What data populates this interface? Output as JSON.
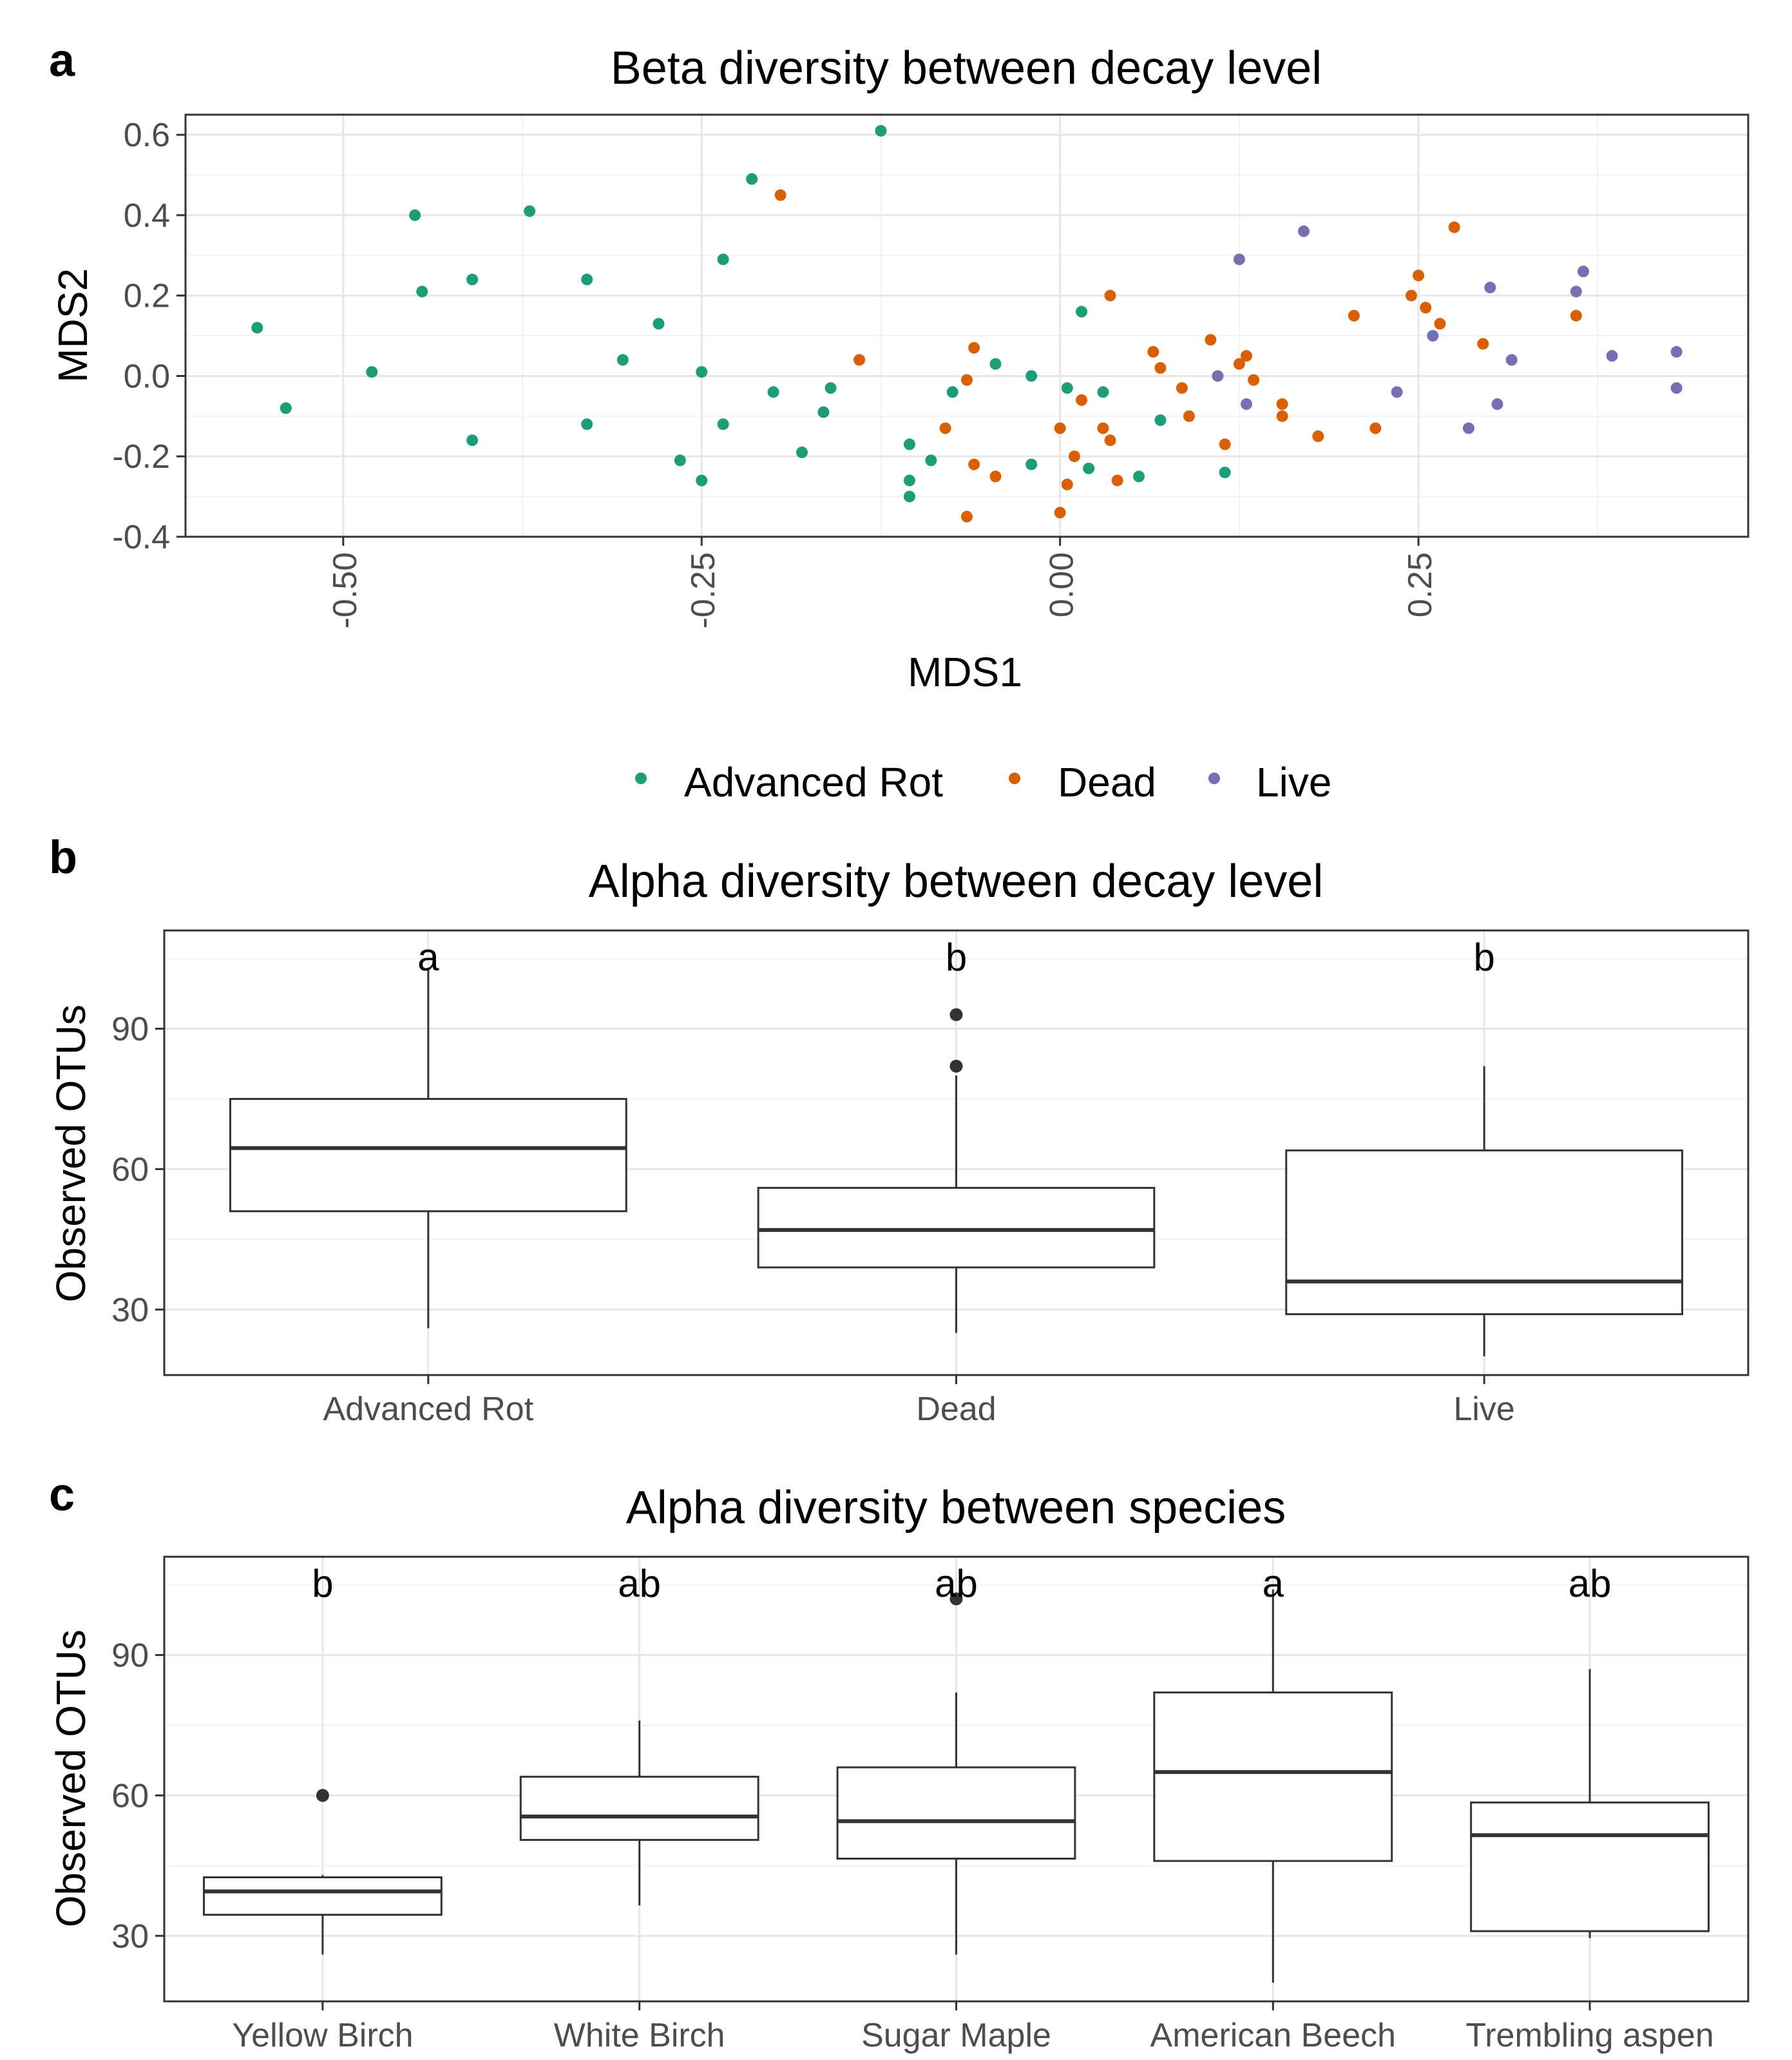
{
  "colors": {
    "advanced_rot": "#1b9e77",
    "dead": "#d95f02",
    "live": "#7570b3",
    "box_stroke": "#333333",
    "outlier": "#333333"
  },
  "chart_data": [
    {
      "panel": "a",
      "type": "scatter",
      "title": "Beta diversity between decay level",
      "xlabel": "MDS1",
      "ylabel": "MDS2",
      "xlim": [
        -0.61,
        0.48
      ],
      "ylim": [
        -0.4,
        0.65
      ],
      "xticks": [
        -0.5,
        -0.25,
        0.0,
        0.25
      ],
      "xtick_labels": [
        "-0.50",
        "-0.25",
        "0.00",
        "0.25"
      ],
      "yticks": [
        -0.4,
        -0.2,
        0.0,
        0.2,
        0.4,
        0.6
      ],
      "ytick_labels": [
        "-0.4",
        "-0.2",
        "0.0",
        "0.2",
        "0.4",
        "0.6"
      ],
      "legend_position": "bottom",
      "series": [
        {
          "name": "Advanced Rot",
          "key": "advanced_rot",
          "points": [
            [
              -0.56,
              0.12
            ],
            [
              -0.54,
              -0.08
            ],
            [
              -0.48,
              0.01
            ],
            [
              -0.45,
              0.4
            ],
            [
              -0.445,
              0.21
            ],
            [
              -0.41,
              0.24
            ],
            [
              -0.41,
              -0.16
            ],
            [
              -0.37,
              0.41
            ],
            [
              -0.33,
              0.24
            ],
            [
              -0.33,
              -0.12
            ],
            [
              -0.305,
              0.04
            ],
            [
              -0.28,
              0.13
            ],
            [
              -0.265,
              -0.21
            ],
            [
              -0.25,
              0.01
            ],
            [
              -0.25,
              -0.26
            ],
            [
              -0.235,
              0.29
            ],
            [
              -0.235,
              -0.12
            ],
            [
              -0.215,
              0.49
            ],
            [
              -0.2,
              -0.04
            ],
            [
              -0.18,
              -0.19
            ],
            [
              -0.165,
              -0.09
            ],
            [
              -0.16,
              -0.03
            ],
            [
              -0.125,
              0.61
            ],
            [
              -0.105,
              -0.17
            ],
            [
              -0.105,
              -0.26
            ],
            [
              -0.105,
              -0.3
            ],
            [
              -0.09,
              -0.21
            ],
            [
              -0.075,
              -0.04
            ],
            [
              -0.045,
              0.03
            ],
            [
              -0.02,
              0.0
            ],
            [
              -0.02,
              -0.22
            ],
            [
              0.005,
              -0.03
            ],
            [
              0.015,
              0.16
            ],
            [
              0.02,
              -0.23
            ],
            [
              0.03,
              -0.04
            ],
            [
              0.055,
              -0.25
            ],
            [
              0.07,
              -0.11
            ],
            [
              0.115,
              -0.24
            ]
          ]
        },
        {
          "name": "Dead",
          "key": "dead",
          "points": [
            [
              -0.195,
              0.45
            ],
            [
              -0.14,
              0.04
            ],
            [
              -0.08,
              -0.13
            ],
            [
              -0.065,
              -0.01
            ],
            [
              -0.065,
              -0.35
            ],
            [
              -0.06,
              0.07
            ],
            [
              -0.06,
              -0.22
            ],
            [
              -0.045,
              -0.25
            ],
            [
              0.0,
              -0.13
            ],
            [
              0.0,
              -0.34
            ],
            [
              0.005,
              -0.27
            ],
            [
              0.01,
              -0.2
            ],
            [
              0.015,
              -0.06
            ],
            [
              0.03,
              -0.13
            ],
            [
              0.035,
              -0.16
            ],
            [
              0.035,
              0.2
            ],
            [
              0.04,
              -0.26
            ],
            [
              0.065,
              0.06
            ],
            [
              0.07,
              0.02
            ],
            [
              0.085,
              -0.03
            ],
            [
              0.09,
              -0.1
            ],
            [
              0.105,
              0.09
            ],
            [
              0.115,
              -0.17
            ],
            [
              0.125,
              0.03
            ],
            [
              0.13,
              0.05
            ],
            [
              0.135,
              -0.01
            ],
            [
              0.155,
              -0.07
            ],
            [
              0.155,
              -0.1
            ],
            [
              0.18,
              -0.15
            ],
            [
              0.205,
              0.15
            ],
            [
              0.22,
              -0.13
            ],
            [
              0.245,
              0.2
            ],
            [
              0.25,
              0.25
            ],
            [
              0.255,
              0.17
            ],
            [
              0.265,
              0.13
            ],
            [
              0.275,
              0.37
            ],
            [
              0.295,
              0.08
            ],
            [
              0.36,
              0.15
            ]
          ]
        },
        {
          "name": "Live",
          "key": "live",
          "points": [
            [
              0.11,
              0.0
            ],
            [
              0.125,
              0.29
            ],
            [
              0.13,
              -0.07
            ],
            [
              0.17,
              0.36
            ],
            [
              0.235,
              -0.04
            ],
            [
              0.26,
              0.1
            ],
            [
              0.285,
              -0.13
            ],
            [
              0.3,
              0.22
            ],
            [
              0.305,
              -0.07
            ],
            [
              0.315,
              0.04
            ],
            [
              0.36,
              0.21
            ],
            [
              0.365,
              0.26
            ],
            [
              0.385,
              0.05
            ],
            [
              0.43,
              0.06
            ],
            [
              0.43,
              -0.03
            ]
          ]
        }
      ]
    },
    {
      "panel": "b",
      "type": "box",
      "title": "Alpha diversity between decay level",
      "xlabel": "",
      "ylabel": "Observed OTUs",
      "ylim": [
        16,
        111
      ],
      "yticks": [
        30,
        60,
        90
      ],
      "ytick_labels": [
        "30",
        "60",
        "90"
      ],
      "categories": [
        "Advanced Rot",
        "Dead",
        "Live"
      ],
      "significance": [
        "a",
        "b",
        "b"
      ],
      "boxes": [
        {
          "q1": 51,
          "median": 64.5,
          "q3": 75,
          "whisker_low": 26,
          "whisker_high": 103,
          "outliers": []
        },
        {
          "q1": 39,
          "median": 47,
          "q3": 56,
          "whisker_low": 25,
          "whisker_high": 80,
          "outliers": [
            82,
            93
          ]
        },
        {
          "q1": 29,
          "median": 36,
          "q3": 64,
          "whisker_low": 20,
          "whisker_high": 82,
          "outliers": []
        }
      ]
    },
    {
      "panel": "c",
      "type": "box",
      "title": "Alpha diversity between species",
      "xlabel": "",
      "ylabel": "Observed OTUs",
      "ylim": [
        16,
        111
      ],
      "yticks": [
        30,
        60,
        90
      ],
      "ytick_labels": [
        "30",
        "60",
        "90"
      ],
      "categories": [
        "Yellow Birch",
        "White Birch",
        "Sugar Maple",
        "American Beech",
        "Trembling aspen"
      ],
      "significance": [
        "b",
        "ab",
        "ab",
        "a",
        "ab"
      ],
      "boxes": [
        {
          "q1": 34.5,
          "median": 39.5,
          "q3": 42.5,
          "whisker_low": 26,
          "whisker_high": 43,
          "outliers": [
            60
          ]
        },
        {
          "q1": 50.5,
          "median": 55.5,
          "q3": 64,
          "whisker_low": 36.5,
          "whisker_high": 76,
          "outliers": []
        },
        {
          "q1": 46.5,
          "median": 54.5,
          "q3": 66,
          "whisker_low": 26,
          "whisker_high": 82,
          "outliers": [
            102
          ]
        },
        {
          "q1": 46,
          "median": 65,
          "q3": 82,
          "whisker_low": 20,
          "whisker_high": 104,
          "outliers": []
        },
        {
          "q1": 31,
          "median": 51.5,
          "q3": 58.5,
          "whisker_low": 29.5,
          "whisker_high": 87,
          "outliers": []
        }
      ]
    }
  ]
}
